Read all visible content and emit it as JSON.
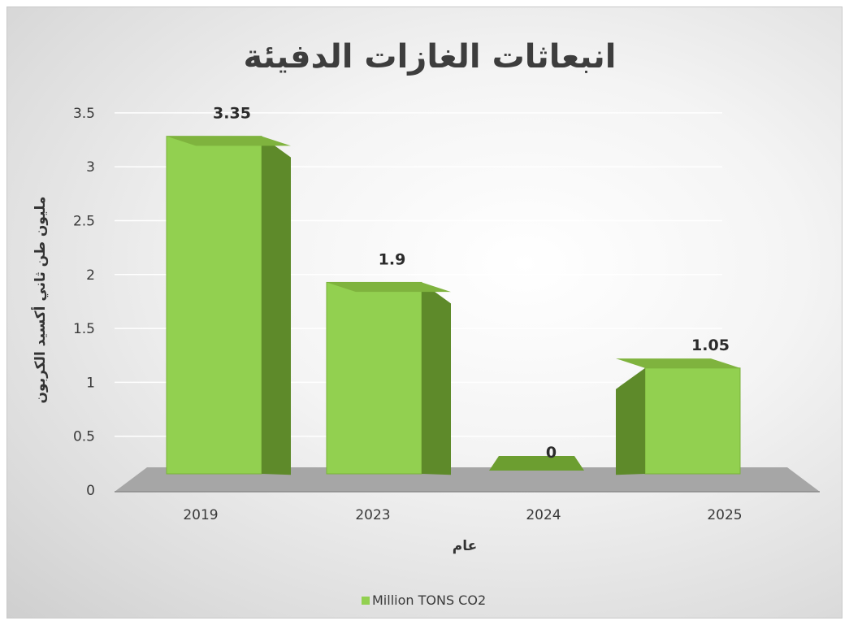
{
  "chart_data": {
    "type": "bar",
    "title": "انبعاثات الغازات الدفيئة",
    "xlabel": "عام",
    "ylabel": "مليون طن ثاني أكسيد الكربون",
    "categories": [
      "2019",
      "2023",
      "2024",
      "2025"
    ],
    "series": [
      {
        "name": "Million TONS CO2",
        "values": [
          3.35,
          1.9,
          0,
          1.05
        ]
      }
    ],
    "data_labels": [
      "3.35",
      "1.9",
      "0",
      "1.05"
    ],
    "ylim": [
      0,
      3.5
    ],
    "yticks": [
      "0",
      "0.5",
      "1",
      "1.5",
      "2",
      "2.5",
      "3",
      "3.5"
    ],
    "grid": true,
    "legend_position": "bottom",
    "bar_style": "3d",
    "colors": {
      "bar_front": "#92d050",
      "bar_side": "#5e8a2a",
      "bar_top": "#7fb33e",
      "floor": "#a6a6a6",
      "gridline": "#ffffff"
    }
  }
}
